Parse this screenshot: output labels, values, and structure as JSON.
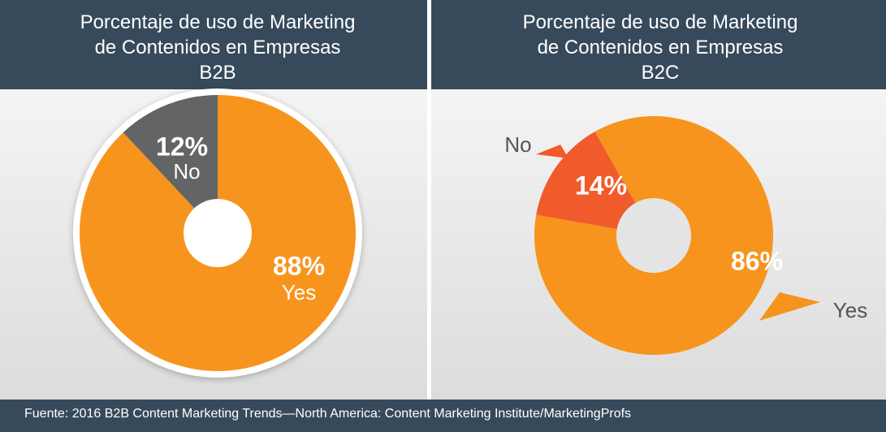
{
  "chart_data": [
    {
      "type": "pie",
      "title": "Porcentaje de uso de Marketing de Contenidos en Empresas B2B",
      "categories": [
        "Yes",
        "No"
      ],
      "values": [
        88,
        12
      ],
      "value_labels": [
        "88%",
        "12%"
      ],
      "colors": [
        "#f7941d",
        "#636466"
      ]
    },
    {
      "type": "pie",
      "title": "Porcentaje de uso de Marketing de Contenidos en Empresas B2C",
      "categories": [
        "Yes",
        "No"
      ],
      "values": [
        86,
        14
      ],
      "value_labels": [
        "86%",
        "14%"
      ],
      "colors": [
        "#f7941d",
        "#f15a2b"
      ]
    }
  ],
  "source": "Fuente: 2016 B2B Content Marketing Trends—North America: Content Marketing Institute/MarketingProfs"
}
